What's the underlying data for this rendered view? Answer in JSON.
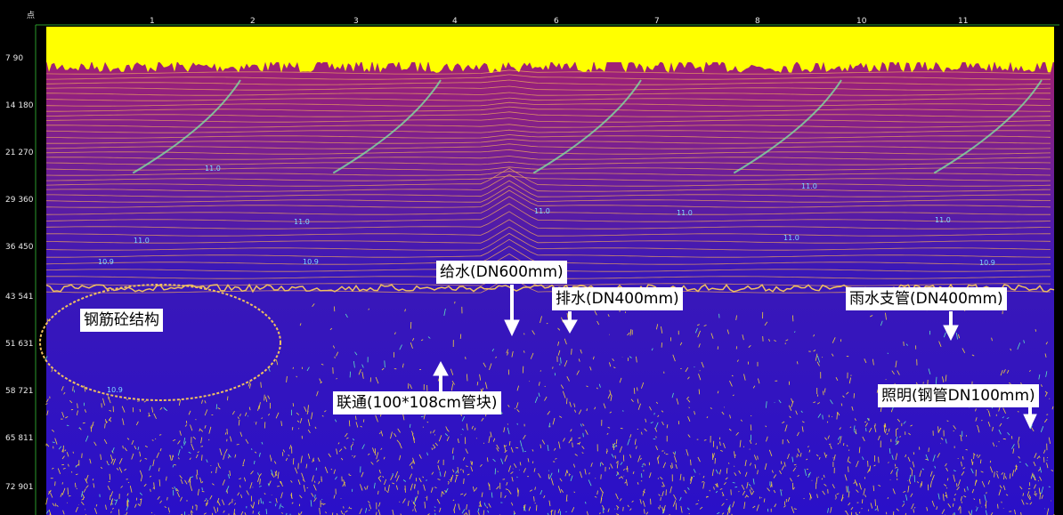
{
  "top_axis": {
    "title": "点",
    "labels": [
      "1",
      "2",
      "3",
      "4",
      "6",
      "7",
      "8",
      "10",
      "11"
    ]
  },
  "left_axis": {
    "labels": [
      "7 90",
      "14 180",
      "21 270",
      "29 360",
      "36 450",
      "43 541",
      "51 631",
      "58 721",
      "65 811",
      "72 901"
    ]
  },
  "contour_labels": [
    "11.0",
    "11.0",
    "11.0",
    "11.0",
    "11.0",
    "11.0",
    "11.0",
    "11.0",
    "10.9",
    "10.9",
    "10.9",
    "10.9"
  ],
  "annotations": [
    "钢筋砼结构",
    "给水(DN600mm)",
    "排水(DN400mm)",
    "雨水支管(DN400mm)",
    "联通(100*108cm管块)",
    "照明(钢管DN100mm)"
  ]
}
